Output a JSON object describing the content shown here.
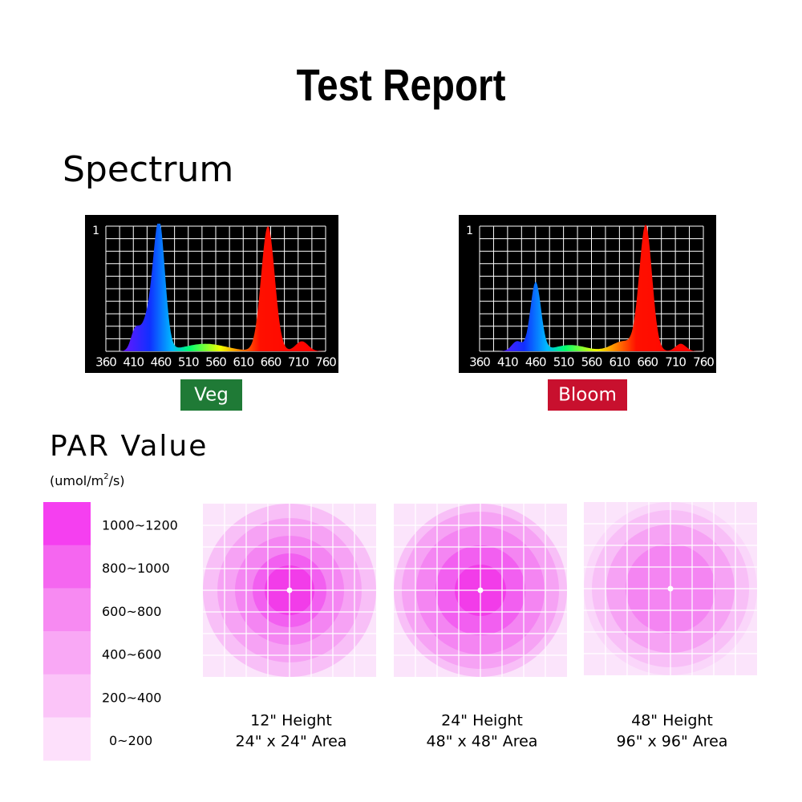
{
  "title": "Test Report",
  "spectrum": {
    "heading": "Spectrum",
    "charts": [
      {
        "label": "Veg",
        "y_label": "1",
        "tick_labels": [
          "360",
          "410",
          "460",
          "510",
          "560",
          "610",
          "660",
          "710",
          "760"
        ]
      },
      {
        "label": "Bloom",
        "y_label": "1",
        "tick_labels": [
          "360",
          "410",
          "460",
          "510",
          "560",
          "610",
          "660",
          "710",
          "760"
        ]
      }
    ]
  },
  "par": {
    "heading": "PAR Value",
    "unit_prefix": "(umol/m",
    "unit_sup": "2",
    "unit_suffix": "/s)",
    "legend": [
      "1000~1200",
      "800~1000",
      "600~800",
      "400~600",
      "200~400",
      "0~200"
    ],
    "maps": [
      {
        "height": "12\" Height",
        "area": "24\" x 24\" Area"
      },
      {
        "height": "24\" Height",
        "area": "48\" x 48\" Area"
      },
      {
        "height": "48\" Height",
        "area": "96\" x 96\" Area"
      }
    ]
  }
}
